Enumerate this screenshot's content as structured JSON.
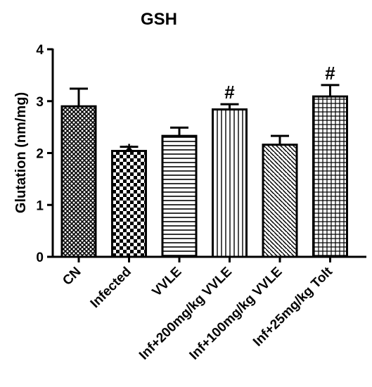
{
  "chart_data": {
    "type": "bar",
    "title": "GSH",
    "ylabel": "Glutation (nm/mg)",
    "xlabel": "",
    "ylim": [
      0,
      4
    ],
    "yticks": [
      "0",
      "1",
      "2",
      "3",
      "4"
    ],
    "categories": [
      "CN",
      "Infected",
      "VVLE",
      "Inf+200mg/kg VVLE",
      "Inf+100mg/kg VVLE",
      "Inf+25mg/kg Tolt"
    ],
    "values": [
      2.9,
      2.04,
      2.33,
      2.84,
      2.16,
      3.09
    ],
    "errors": [
      0.34,
      0.08,
      0.16,
      0.1,
      0.17,
      0.22
    ],
    "annotations": [
      "",
      "*",
      "",
      "#",
      "",
      "#"
    ],
    "patterns": [
      "crosshatch",
      "checker",
      "horizontal-lines",
      "vertical-lines",
      "diagonal-lines",
      "grid"
    ],
    "grid": false,
    "legend": "none",
    "colors": {
      "bar_stroke": "#000000",
      "fill": "#ffffff"
    }
  }
}
